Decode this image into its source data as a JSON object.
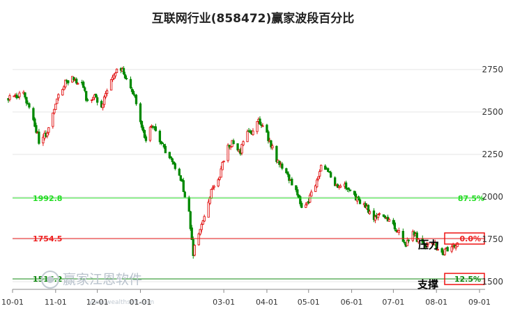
{
  "chart_data": {
    "type": "candlestick",
    "title": "互联网行业(858472)赢家波段百分比",
    "ylim": [
      1480,
      2800
    ],
    "y_ticks": [
      {
        "value": 2750,
        "label": "2750"
      },
      {
        "value": 2500,
        "label": "2500"
      },
      {
        "value": 2250,
        "label": "2250"
      },
      {
        "value": 2000,
        "label": "2000"
      },
      {
        "value": 1750,
        "label": "1750"
      },
      {
        "value": 1500,
        "label": "1500"
      }
    ],
    "x_range": [
      "2023-10-01",
      "2024-09-05"
    ],
    "x_ticks": [
      {
        "date": "2023-10-01",
        "label": "10-01"
      },
      {
        "date": "2023-11-01",
        "label": "11-01"
      },
      {
        "date": "2023-12-01",
        "label": "12-01"
      },
      {
        "date": "2024-01-01",
        "label": "01-01"
      },
      {
        "date": "2024-03-01",
        "label": "03-01"
      },
      {
        "date": "2024-04-01",
        "label": "04-01"
      },
      {
        "date": "2024-05-01",
        "label": "05-01"
      },
      {
        "date": "2024-06-01",
        "label": "06-01"
      },
      {
        "date": "2024-07-01",
        "label": "07-01"
      },
      {
        "date": "2024-08-01",
        "label": "08-01"
      },
      {
        "date": "2024-09-01",
        "label": "09-01"
      }
    ],
    "levels": [
      {
        "value": 1992.8,
        "label": "1992.8",
        "percent": "87.5%",
        "color": "#22dd22"
      },
      {
        "value": 1754.5,
        "label": "1754.5",
        "percent": "0.0%",
        "color": "#ee2222"
      },
      {
        "value": 1516.2,
        "label": "1516.2",
        "percent": "12.5%",
        "color": "#118811"
      }
    ],
    "annotations": {
      "resistance": "压力",
      "support": "支撑"
    },
    "up_color": "#e01010",
    "down_color": "#008800",
    "anchors": [
      [
        "2023-09-28",
        2580
      ],
      [
        "2023-10-09",
        2605
      ],
      [
        "2023-10-16",
        2460
      ],
      [
        "2023-10-20",
        2330
      ],
      [
        "2023-10-26",
        2380
      ],
      [
        "2023-11-03",
        2590
      ],
      [
        "2023-11-08",
        2680
      ],
      [
        "2023-11-14",
        2700
      ],
      [
        "2023-11-20",
        2660
      ],
      [
        "2023-11-24",
        2560
      ],
      [
        "2023-11-29",
        2590
      ],
      [
        "2023-12-04",
        2530
      ],
      [
        "2023-12-08",
        2640
      ],
      [
        "2023-12-13",
        2730
      ],
      [
        "2023-12-18",
        2760
      ],
      [
        "2023-12-22",
        2680
      ],
      [
        "2023-12-27",
        2620
      ],
      [
        "2024-01-01",
        2430
      ],
      [
        "2024-01-05",
        2340
      ],
      [
        "2024-01-09",
        2420
      ],
      [
        "2024-01-12",
        2390
      ],
      [
        "2024-01-17",
        2300
      ],
      [
        "2024-01-22",
        2230
      ],
      [
        "2024-01-26",
        2170
      ],
      [
        "2024-01-31",
        2080
      ],
      [
        "2024-02-05",
        1900
      ],
      [
        "2024-02-08",
        1660
      ],
      [
        "2024-02-09",
        1700
      ],
      [
        "2024-02-16",
        1880
      ],
      [
        "2024-02-21",
        2030
      ],
      [
        "2024-02-27",
        2130
      ],
      [
        "2024-03-04",
        2300
      ],
      [
        "2024-03-08",
        2320
      ],
      [
        "2024-03-13",
        2270
      ],
      [
        "2024-03-18",
        2400
      ],
      [
        "2024-03-22",
        2380
      ],
      [
        "2024-03-26",
        2450
      ],
      [
        "2024-03-28",
        2430
      ],
      [
        "2024-04-03",
        2330
      ],
      [
        "2024-04-09",
        2200
      ],
      [
        "2024-04-15",
        2140
      ],
      [
        "2024-04-22",
        2040
      ],
      [
        "2024-04-26",
        1930
      ],
      [
        "2024-04-30",
        1960
      ],
      [
        "2024-05-06",
        2080
      ],
      [
        "2024-05-10",
        2170
      ],
      [
        "2024-05-14",
        2180
      ],
      [
        "2024-05-20",
        2060
      ],
      [
        "2024-05-24",
        2080
      ],
      [
        "2024-05-30",
        2050
      ],
      [
        "2024-06-04",
        1990
      ],
      [
        "2024-06-11",
        1940
      ],
      [
        "2024-06-17",
        1880
      ],
      [
        "2024-06-21",
        1910
      ],
      [
        "2024-06-26",
        1880
      ],
      [
        "2024-07-01",
        1840
      ],
      [
        "2024-07-05",
        1790
      ],
      [
        "2024-07-10",
        1720
      ],
      [
        "2024-07-15",
        1790
      ],
      [
        "2024-07-19",
        1740
      ],
      [
        "2024-07-24",
        1700
      ],
      [
        "2024-07-29",
        1730
      ],
      [
        "2024-08-01",
        1710
      ],
      [
        "2024-08-06",
        1670
      ],
      [
        "2024-08-12",
        1710
      ],
      [
        "2024-08-16",
        1730
      ]
    ]
  },
  "watermark": {
    "text": "赢家江恩软件",
    "url": "www.wealthsoft.com"
  }
}
